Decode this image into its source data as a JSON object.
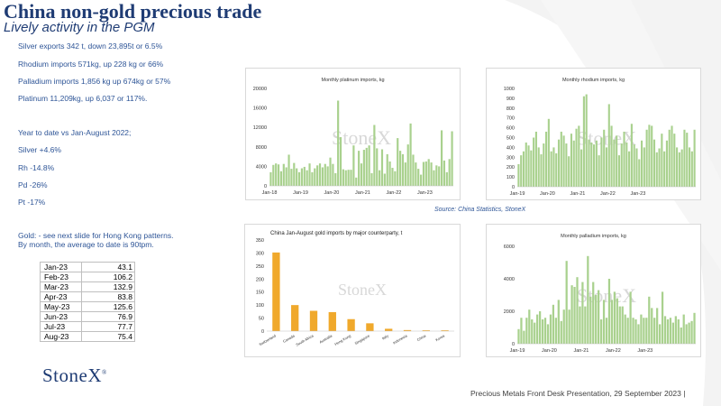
{
  "slide": {
    "title": "China non-gold precious trade",
    "subtitle": "Lively activity in the PGM",
    "bullets": [
      "Silver exports 342 t, down 23,895t or 6.5%",
      "Rhodium imports 571kg, up 228 kg or 66%",
      "Palladium imports 1,856 kg up 674kg or 57%",
      "Platinum 11,209kg, up 6,037 or 117%."
    ],
    "ytd_heading": "Year to date vs Jan-August 2022;",
    "ytd": [
      "Silver +4.6%",
      "Rh -14.8%",
      "Pd -26%",
      "Pt -17%"
    ],
    "gold_note_1": "Gold: - see next slide for Hong Kong patterns.",
    "gold_note_2": "By month, the average to date is 90tpm.",
    "gold_table": [
      {
        "month": "Jan-23",
        "value": "43.1"
      },
      {
        "month": "Feb-23",
        "value": "106.2"
      },
      {
        "month": "Mar-23",
        "value": "132.9"
      },
      {
        "month": "Apr-23",
        "value": "83.8"
      },
      {
        "month": "May-23",
        "value": "125.6"
      },
      {
        "month": "Jun-23",
        "value": "76.9"
      },
      {
        "month": "Jul-23",
        "value": "77.7"
      },
      {
        "month": "Aug-23",
        "value": "75.4"
      }
    ],
    "logo_text": "StoneX",
    "source": "Source: China Statistics, StoneX",
    "footer": "Precious Metals Front Desk Presentation, 29 September 2023 |",
    "colors": {
      "navy": "#1f3c74",
      "blue_text": "#2e5597",
      "green_bar": "#a9d18e",
      "gold_bar": "#f0a92c"
    }
  },
  "chart_data": [
    {
      "type": "bar",
      "title": "Monthly platinum imports, kg",
      "watermark": "StoneX",
      "x_tick_labels": [
        "Jan-18",
        "Jan-19",
        "Jan-20",
        "Jan-21",
        "Jan-22",
        "Jan-23"
      ],
      "ylim": [
        0,
        20000
      ],
      "y_ticks": [
        "0",
        "4000",
        "8000",
        "12000",
        "16000",
        "20000"
      ],
      "values": [
        2800,
        4300,
        4600,
        4400,
        3000,
        4500,
        3800,
        6400,
        3500,
        4700,
        3600,
        2800,
        3600,
        3900,
        3200,
        4600,
        2800,
        3600,
        4200,
        4600,
        3800,
        4500,
        4000,
        5800,
        4500,
        2600,
        17500,
        10000,
        3400,
        3200,
        3300,
        3300,
        8300,
        1700,
        7200,
        4600,
        7400,
        7800,
        8300,
        2600,
        12500,
        7700,
        3200,
        7500,
        2500,
        6500,
        5000,
        3700,
        3000,
        9800,
        7200,
        6500,
        4800,
        8500,
        12800,
        6400,
        4800,
        3500,
        2300,
        4900,
        5000,
        5500,
        4800,
        3200,
        4200,
        4000,
        11400,
        5200,
        2800,
        5500,
        11200
      ],
      "bar_color": "#a9d18e"
    },
    {
      "type": "bar",
      "title": "Monthly rhodium imports, kg",
      "watermark": "StoneX",
      "x_tick_labels": [
        "Jan-19",
        "Jan-20",
        "Jan-21",
        "Jan-22",
        "Jan-23"
      ],
      "ylim": [
        0,
        1000
      ],
      "y_ticks": [
        "0",
        "100",
        "200",
        "300",
        "400",
        "500",
        "600",
        "700",
        "800",
        "900",
        "1000"
      ],
      "values": [
        230,
        320,
        360,
        450,
        420,
        370,
        500,
        560,
        400,
        330,
        440,
        560,
        690,
        360,
        400,
        340,
        480,
        560,
        520,
        440,
        310,
        540,
        470,
        590,
        620,
        380,
        920,
        940,
        480,
        450,
        430,
        470,
        320,
        500,
        580,
        400,
        840,
        620,
        480,
        520,
        320,
        440,
        560,
        450,
        360,
        640,
        430,
        390,
        280,
        470,
        400,
        580,
        630,
        620,
        480,
        350,
        390,
        540,
        360,
        470,
        580,
        620,
        540,
        400,
        350,
        380,
        580,
        550,
        400,
        360,
        580
      ],
      "bar_color": "#a9d18e"
    },
    {
      "type": "bar",
      "title": "China Jan-August gold imports by major counterparty, t",
      "watermark": "StoneX",
      "categories": [
        "Switzerland",
        "Canada",
        "South Africa",
        "Australia",
        "Hong Kong",
        "Singapore",
        "Italy",
        "Indonesia",
        "China",
        "Korea"
      ],
      "ylim": [
        0,
        350
      ],
      "y_ticks": [
        "0",
        "50",
        "100",
        "150",
        "200",
        "250",
        "300",
        "350"
      ],
      "values": [
        302,
        100,
        78,
        73,
        46,
        30,
        9,
        4,
        3,
        3
      ],
      "bar_color": "#f0a92c"
    },
    {
      "type": "bar",
      "title": "Monthly palladium imports, kg",
      "watermark": "StoneX",
      "x_tick_labels": [
        "Jan-19",
        "Jan-20",
        "Jan-21",
        "Jan-22",
        "Jan-23"
      ],
      "ylim": [
        0,
        6000
      ],
      "y_ticks": [
        "0",
        "2000",
        "4000",
        "6000"
      ],
      "values": [
        900,
        1600,
        800,
        1600,
        2100,
        1500,
        1300,
        1800,
        2000,
        1500,
        1600,
        1200,
        1800,
        2400,
        1600,
        2700,
        1400,
        2100,
        5100,
        2100,
        3600,
        3500,
        4100,
        2300,
        3800,
        2300,
        5400,
        2900,
        3800,
        3000,
        3300,
        1500,
        2700,
        1600,
        4000,
        2700,
        3200,
        2800,
        2300,
        2300,
        1800,
        1600,
        3200,
        1600,
        1500,
        1200,
        1800,
        1600,
        1600,
        2900,
        2200,
        1600,
        2200,
        1200,
        3200,
        1700,
        1500,
        1600,
        1300,
        1700,
        1500,
        1000,
        1800,
        1200,
        1300,
        1400,
        1900
      ]
    }
  ]
}
